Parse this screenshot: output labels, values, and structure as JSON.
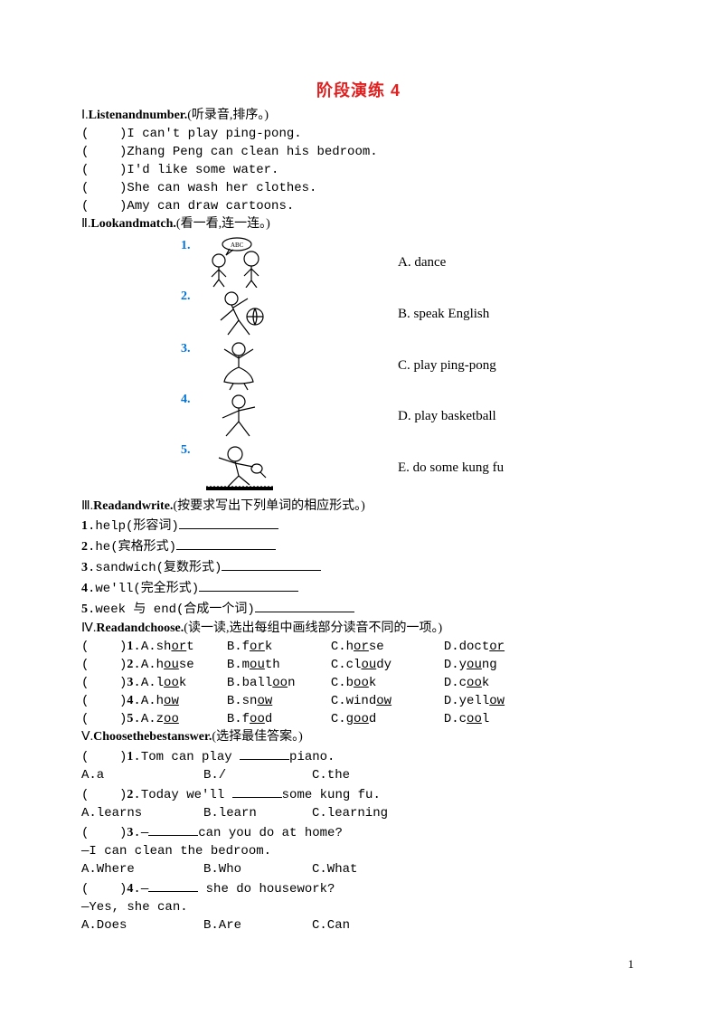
{
  "title": "阶段演练 4",
  "sec1": {
    "head_roman": "Ⅰ.",
    "head_bold": "Listenandnumber.",
    "head_paren": "(听录音,排序。)",
    "items": [
      "I can't play ping-pong.",
      "Zhang Peng can clean his bedroom.",
      "I'd like some water.",
      "She can wash her clothes.",
      "Amy can draw cartoons."
    ]
  },
  "sec2": {
    "head_roman": "Ⅱ.",
    "head_bold": "Lookandmatch.",
    "head_paren": "(看一看,连一连。)",
    "rows": [
      {
        "n": "1.",
        "label": "A. dance"
      },
      {
        "n": "2.",
        "label": "B. speak English"
      },
      {
        "n": "3.",
        "label": "C. play ping-pong"
      },
      {
        "n": "4.",
        "label": "D. play basketball"
      },
      {
        "n": "5.",
        "label": "E. do some kung fu"
      }
    ]
  },
  "sec3": {
    "head_roman": "Ⅲ.",
    "head_bold": "Readandwrite.",
    "head_paren": "(按要求写出下列单词的相应形式。)",
    "items": [
      {
        "n": "1",
        "txt": ".help(形容词)"
      },
      {
        "n": "2",
        "txt": ".he(宾格形式)"
      },
      {
        "n": "3",
        "txt": ".sandwich(复数形式)"
      },
      {
        "n": "4",
        "txt": ".we'll(完全形式)"
      },
      {
        "n": "5",
        "txt": ".week 与 end(合成一个词)"
      }
    ]
  },
  "sec4": {
    "head_roman": "Ⅳ.",
    "head_bold": "Readandchoose.",
    "head_paren": "(读一读,选出每组中画线部分读音不同的一项。)",
    "rows": [
      {
        "n": "1",
        "a_pre": "A.sh",
        "a_u": "or",
        "a_post": "t",
        "b_pre": "B.f",
        "b_u": "or",
        "b_post": "k",
        "c_pre": "C.h",
        "c_u": "or",
        "c_post": "se",
        "d_pre": "D.doct",
        "d_u": "or",
        "d_post": ""
      },
      {
        "n": "2",
        "a_pre": "A.h",
        "a_u": "ou",
        "a_post": "se",
        "b_pre": "B.m",
        "b_u": "ou",
        "b_post": "th",
        "c_pre": "C.cl",
        "c_u": "ou",
        "c_post": "dy",
        "d_pre": "D.y",
        "d_u": "ou",
        "d_post": "ng"
      },
      {
        "n": "3",
        "a_pre": "A.l",
        "a_u": "oo",
        "a_post": "k",
        "b_pre": "B.ball",
        "b_u": "oo",
        "b_post": "n",
        "c_pre": "C.b",
        "c_u": "oo",
        "c_post": "k",
        "d_pre": "D.c",
        "d_u": "oo",
        "d_post": "k"
      },
      {
        "n": "4",
        "a_pre": "A.h",
        "a_u": "ow",
        "a_post": "",
        "b_pre": "B.sn",
        "b_u": "ow",
        "b_post": "",
        "c_pre": "C.wind",
        "c_u": "ow",
        "c_post": "",
        "d_pre": "D.yell",
        "d_u": "ow",
        "d_post": ""
      },
      {
        "n": "5",
        "a_pre": "A.z",
        "a_u": "oo",
        "a_post": "",
        "b_pre": "B.f",
        "b_u": "oo",
        "b_post": "d",
        "c_pre": "C.g",
        "c_u": "oo",
        "c_post": "d",
        "d_pre": "D.c",
        "d_u": "oo",
        "d_post": "l"
      }
    ],
    "col_a_w": 95,
    "col_b_w": 115,
    "col_c_w": 125
  },
  "sec5": {
    "head_roman": "Ⅴ.",
    "head_bold": "Choosethebestanswer.",
    "head_paren": "(选择最佳答案。)",
    "q1": {
      "n": "1",
      "txt_a": ".Tom can play ",
      "txt_b": "piano.",
      "opts": [
        "A.a",
        "B./",
        "C.the"
      ]
    },
    "q2": {
      "n": "2",
      "txt_a": ".Today we'll ",
      "txt_b": "some kung fu.",
      "opts": [
        "A.learns",
        "B.learn",
        "C.learning"
      ]
    },
    "q3": {
      "n": "3",
      "txt_a": ".—",
      "txt_b": "can you do at home?",
      "ans": "—I can clean the bedroom.",
      "opts": [
        "A.Where",
        "B.Who",
        "C.What"
      ]
    },
    "q4": {
      "n": "4",
      "txt_a": ".—",
      "txt_b": " she do housework?",
      "ans": "—Yes, she can.",
      "opts": [
        "A.Does",
        "B.Are",
        "C.Can"
      ]
    },
    "opt_col_a": 135,
    "opt_col_b": 120
  },
  "pagenum": "1",
  "colors": {
    "title": "#e02020",
    "num_blue": "#0074d9",
    "text": "#000000",
    "bg": "#ffffff"
  }
}
